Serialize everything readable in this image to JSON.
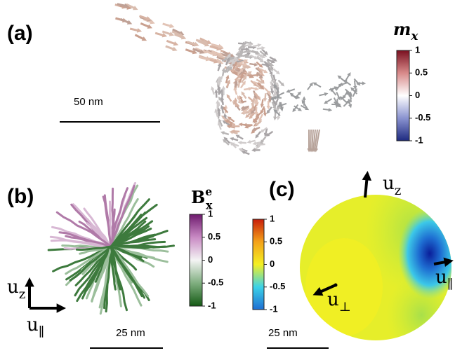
{
  "panels": [
    {
      "label": "(a)",
      "scale_bar": "50 nm",
      "colorbar": {
        "symbol": "m",
        "subscript": "x",
        "ticks": [
          1,
          0.5,
          0,
          -0.5,
          -1
        ],
        "colors": [
          "#7a1020",
          "#d88a8a",
          "#ffffff",
          "#8a93d0",
          "#1e2a80"
        ]
      }
    },
    {
      "label": "(b)",
      "scale_bar": "25 nm",
      "colorbar": {
        "symbol": "B",
        "subscript": "x",
        "superscript": "e",
        "ticks": [
          1,
          0.5,
          0,
          -0.5,
          -1
        ],
        "colors": [
          "#6e1a6e",
          "#c98ac4",
          "#f4f4f4",
          "#7fae7f",
          "#145a14"
        ]
      },
      "axes": {
        "vertical": {
          "symbol": "u",
          "subscript": "z"
        },
        "horizontal": {
          "symbol": "u",
          "subscript": "∥"
        }
      }
    },
    {
      "label": "(c)",
      "scale_bar": "25 nm",
      "colorbar": {
        "ticks": [
          1,
          0.5,
          0,
          -0.5,
          -1
        ],
        "colors": [
          "#c81e0a",
          "#f4a21a",
          "#f4f022",
          "#3cd2e8",
          "#1e6ed2"
        ]
      },
      "axes": {
        "z": {
          "symbol": "u",
          "subscript": "z"
        },
        "parallel": {
          "symbol": "u",
          "subscript": "∥"
        },
        "perpendicular": {
          "symbol": "u",
          "subscript": "⊥"
        }
      }
    }
  ]
}
